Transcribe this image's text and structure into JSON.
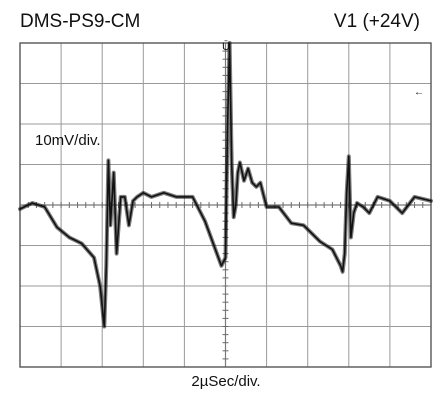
{
  "chart_data": {
    "type": "line",
    "title": "DMS-PS9-CM",
    "channel_label": "V1 (+24V)",
    "vertical_scale_label": "10mV/div.",
    "horizontal_scale_label": "2µSec/div.",
    "x_unit": "div",
    "y_unit": "div",
    "xlim": [
      0,
      10
    ],
    "ylim": [
      -4,
      4
    ],
    "grid": true,
    "trigger_marker": "Ū",
    "trigger_level_marker": "←",
    "trace_color": "#111111",
    "series": [
      {
        "x": [
          0.0,
          0.3,
          0.6,
          0.9,
          1.2,
          1.5,
          1.8,
          1.95,
          2.05,
          2.1,
          2.15,
          2.2,
          2.28,
          2.35,
          2.45,
          2.55,
          2.65,
          2.75,
          2.85,
          3.0,
          3.2,
          3.5,
          3.8,
          4.2,
          4.5,
          4.9,
          5.0,
          5.05,
          5.1,
          5.15,
          5.2,
          5.25,
          5.3,
          5.35,
          5.45,
          5.55,
          5.65,
          5.75,
          5.85,
          6.0,
          6.3,
          6.6,
          6.9,
          7.3,
          7.6,
          7.8,
          7.85,
          7.9,
          7.95,
          8.0,
          8.05,
          8.12,
          8.2,
          8.35,
          8.5,
          8.7,
          9.0,
          9.3,
          9.6,
          10.0
        ],
        "y": [
          -0.1,
          0.05,
          -0.05,
          -0.55,
          -0.8,
          -0.95,
          -1.3,
          -2.0,
          -3.0,
          -1.5,
          1.1,
          -0.5,
          0.8,
          -1.2,
          0.2,
          0.2,
          -0.5,
          0.1,
          0.2,
          0.3,
          0.2,
          0.3,
          0.2,
          0.2,
          -0.4,
          -1.5,
          -1.3,
          2.0,
          4.0,
          1.0,
          -0.3,
          0.0,
          0.8,
          1.05,
          0.6,
          0.9,
          0.55,
          0.45,
          0.55,
          -0.05,
          -0.05,
          -0.45,
          -0.5,
          -0.9,
          -1.1,
          -1.5,
          -1.65,
          -1.2,
          0.3,
          1.2,
          -0.8,
          -0.2,
          0.05,
          -0.05,
          -0.2,
          0.2,
          0.1,
          -0.2,
          0.2,
          0.1
        ]
      }
    ]
  }
}
